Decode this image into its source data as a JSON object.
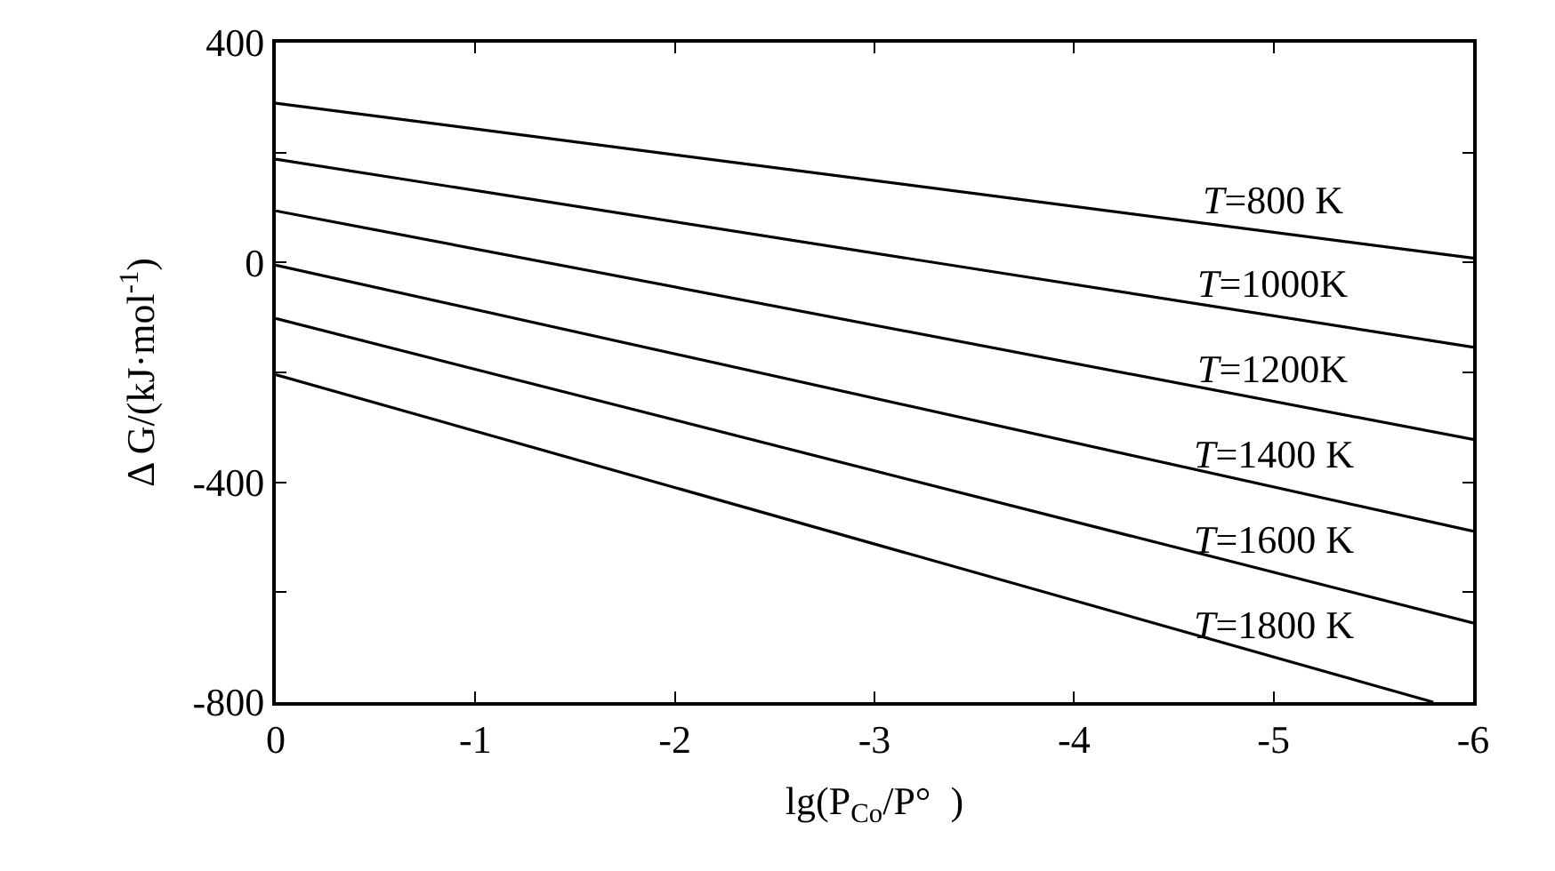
{
  "chart_data": {
    "type": "line",
    "xlabel": "lg(P$_{Co}$/P°  )",
    "ylabel": "Δ G/(kJ·mol$^{-1}$)",
    "xlim": [
      0,
      -6
    ],
    "xticks": [
      0,
      -1,
      -2,
      -3,
      -4,
      -5,
      -6
    ],
    "ylim": [
      -800,
      400
    ],
    "yticks": [
      400,
      {
        "value": 200,
        "label": null
      },
      0,
      {
        "value": -200,
        "label": null
      },
      -400,
      {
        "value": -600,
        "label": null
      },
      -800
    ],
    "legend": false,
    "marker": "none",
    "line_style": "solid",
    "series": [
      {
        "name": "T=800 K",
        "color": "#000000",
        "x": [
          0,
          -6
        ],
        "values": [
          290,
          8
        ]
      },
      {
        "name": "T=1000K",
        "color": "#000000",
        "x": [
          0,
          -6
        ],
        "values": [
          188,
          -154
        ]
      },
      {
        "name": "T=1200K",
        "color": "#000000",
        "x": [
          0,
          -6
        ],
        "values": [
          94,
          -322
        ]
      },
      {
        "name": "T=1400 K",
        "color": "#000000",
        "x": [
          0,
          -6
        ],
        "values": [
          -5,
          -489
        ]
      },
      {
        "name": "T=1600 K",
        "color": "#000000",
        "x": [
          0,
          -6
        ],
        "values": [
          -102,
          -656
        ]
      },
      {
        "name": "T=1800 K",
        "color": "#000000",
        "x": [
          0,
          -5.8
        ],
        "values": [
          -204,
          -800
        ]
      }
    ]
  }
}
